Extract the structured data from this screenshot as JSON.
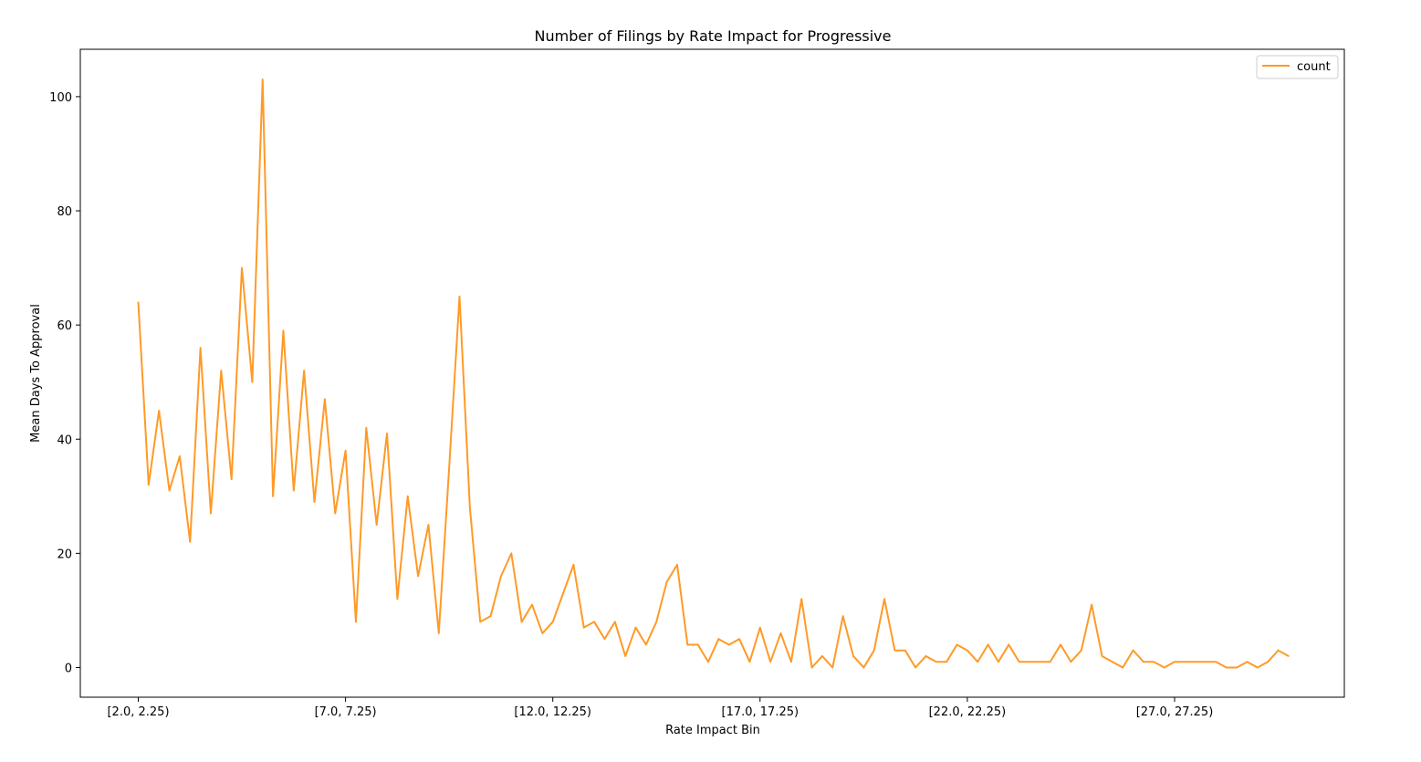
{
  "chart_data": {
    "type": "line",
    "title": "Number of Filings by Rate Impact for Progressive",
    "xlabel": "Rate Impact Bin",
    "ylabel": "Mean Days To Approval",
    "ylim": [
      -5.2,
      108.3
    ],
    "y_ticks": [
      0,
      20,
      40,
      60,
      80,
      100
    ],
    "x_ticks": [
      {
        "index": 0,
        "label": "[2.0, 2.25)"
      },
      {
        "index": 20,
        "label": "[7.0, 7.25)"
      },
      {
        "index": 40,
        "label": "[12.0, 12.25)"
      },
      {
        "index": 60,
        "label": "[17.0, 17.25)"
      },
      {
        "index": 80,
        "label": "[22.0, 22.25)"
      },
      {
        "index": 100,
        "label": "[27.0, 27.25)"
      }
    ],
    "grid": false,
    "legend_position": "top-right",
    "series": [
      {
        "name": "count",
        "color": "#ff9a27",
        "values": [
          64,
          32,
          45,
          31,
          37,
          22,
          56,
          27,
          52,
          33,
          70,
          50,
          103,
          30,
          59,
          31,
          52,
          29,
          47,
          27,
          38,
          8,
          42,
          25,
          41,
          12,
          30,
          16,
          25,
          6,
          35,
          65,
          28,
          8,
          9,
          16,
          20,
          8,
          11,
          6,
          8,
          13,
          18,
          7,
          8,
          5,
          8,
          2,
          7,
          4,
          8,
          15,
          18,
          4,
          4,
          1,
          5,
          4,
          5,
          1,
          7,
          1,
          6,
          1,
          12,
          0,
          2,
          0,
          9,
          2,
          0,
          3,
          12,
          3,
          3,
          0,
          2,
          1,
          1,
          4,
          3,
          1,
          4,
          1,
          4,
          1,
          1,
          1,
          1,
          4,
          1,
          3,
          11,
          2,
          1,
          0,
          3,
          1,
          1,
          0,
          1,
          1,
          1,
          1,
          1,
          0,
          0,
          1,
          0,
          1,
          3,
          2
        ]
      }
    ]
  }
}
